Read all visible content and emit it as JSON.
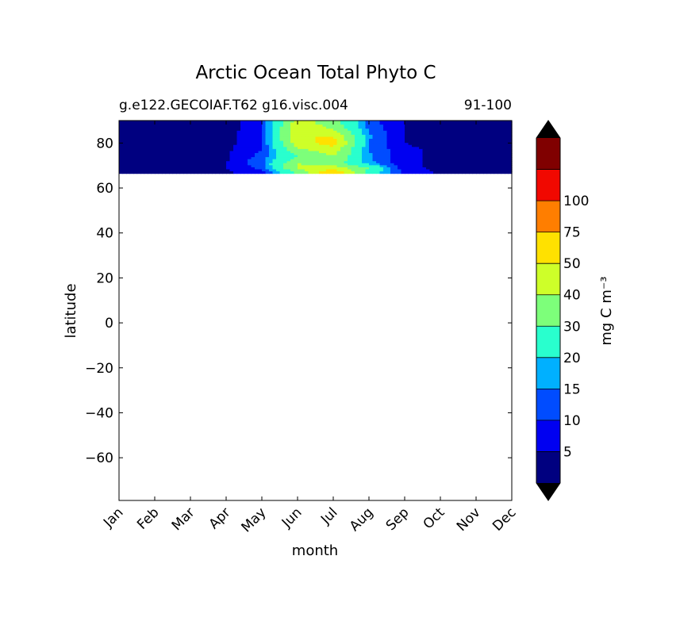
{
  "chart_data": {
    "type": "heatmap",
    "title": "Arctic Ocean Total Phyto C",
    "subtitle_left": "g.e122.GECOIAF.T62 g16.visc.004",
    "subtitle_right": "91-100",
    "xlabel": "month",
    "ylabel": "latitude",
    "x_ticks": [
      "Jan",
      "Feb",
      "Mar",
      "Apr",
      "May",
      "Jun",
      "Jul",
      "Aug",
      "Sep",
      "Oct",
      "Nov",
      "Dec"
    ],
    "y_ticks": [
      80,
      60,
      40,
      20,
      0,
      -20,
      -40,
      -60
    ],
    "y_tick_labels": [
      "80",
      "60",
      "40",
      "20",
      "0",
      "−20",
      "−40",
      "−60"
    ],
    "ylim": [
      -79,
      90
    ],
    "xlim": [
      0,
      11
    ],
    "data_lat_range": [
      66.5,
      90
    ],
    "latitudes": [
      67,
      69,
      71,
      74,
      77,
      80,
      83,
      86,
      89
    ],
    "values": [
      [
        4,
        4,
        4,
        4,
        8,
        32,
        60,
        25,
        8,
        4,
        4,
        4
      ],
      [
        4,
        4,
        4,
        5,
        12,
        42,
        45,
        30,
        6,
        4,
        4,
        4
      ],
      [
        3,
        3,
        4,
        5,
        14,
        40,
        35,
        17,
        6,
        4,
        3,
        3
      ],
      [
        3,
        3,
        3,
        4,
        12,
        30,
        40,
        16,
        6,
        4,
        3,
        2
      ],
      [
        1,
        2,
        3,
        4,
        10,
        38,
        45,
        15,
        6,
        4,
        2,
        1
      ],
      [
        1,
        1,
        2,
        3,
        10,
        45,
        55,
        15,
        5,
        3,
        1,
        0.5
      ],
      [
        0.5,
        1,
        2,
        3,
        10,
        50,
        50,
        16,
        5,
        3,
        1,
        0.5
      ],
      [
        0.5,
        0.5,
        1,
        2,
        10,
        48,
        40,
        14,
        5,
        2,
        1,
        0.5
      ],
      [
        0.5,
        0.5,
        1,
        2,
        10,
        45,
        35,
        12,
        5,
        2,
        1,
        0.5
      ]
    ],
    "colorbar": {
      "label": "mg C m⁻³",
      "levels": [
        0,
        5,
        10,
        15,
        20,
        30,
        40,
        50,
        75,
        100,
        125
      ],
      "tick_labels": [
        "5",
        "10",
        "15",
        "20",
        "30",
        "40",
        "50",
        "75",
        "100"
      ],
      "colors": [
        "#000080",
        "#0000f1",
        "#004cff",
        "#00b0ff",
        "#29ffce",
        "#7dff7a",
        "#ceff29",
        "#ffe100",
        "#ff7e00",
        "#f10800",
        "#800000"
      ],
      "under_color": "#000000",
      "over_color": "#000000",
      "extend": "both"
    },
    "grid": false,
    "legend": "colorbar-right"
  }
}
